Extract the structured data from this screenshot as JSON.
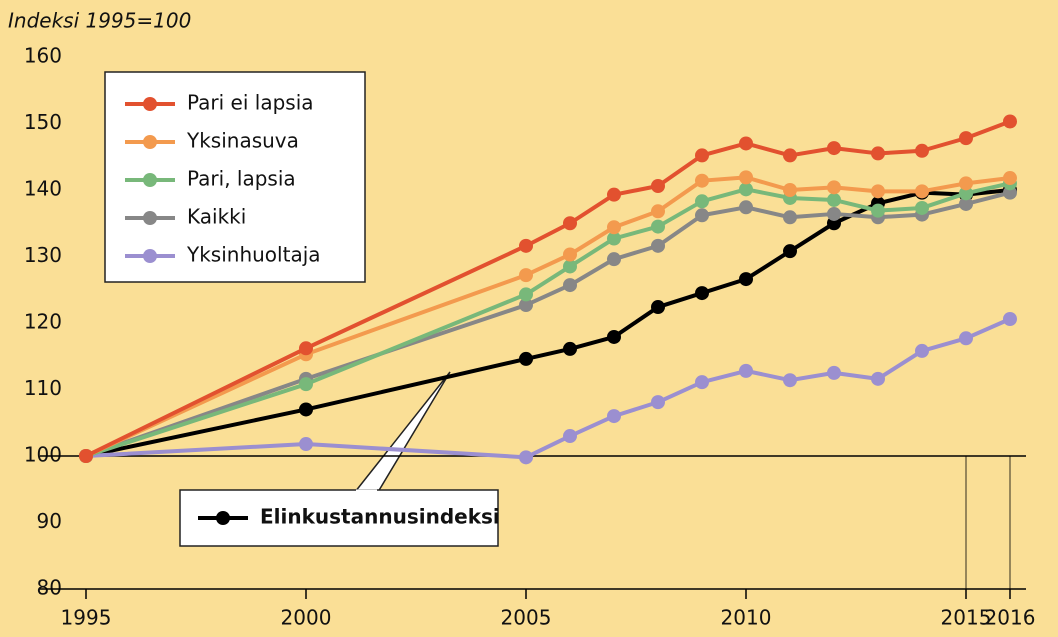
{
  "chart_data": {
    "type": "line",
    "y_label": "Indeksi 1995=100",
    "x": [
      1995,
      2000,
      2005,
      2006,
      2007,
      2008,
      2009,
      2010,
      2011,
      2012,
      2013,
      2014,
      2015,
      2016
    ],
    "series": [
      {
        "name": "Pari ei lapsia",
        "color": "#e2512f",
        "values": [
          100,
          116.2,
          131.6,
          135,
          139.3,
          140.6,
          145.2,
          147,
          145.2,
          146.3,
          145.5,
          145.9,
          147.8,
          150.3
        ]
      },
      {
        "name": "Yksinasuva",
        "color": "#f39a4e",
        "values": [
          100,
          115.3,
          127.2,
          130.3,
          134.4,
          136.8,
          141.4,
          141.9,
          140,
          140.4,
          139.8,
          139.8,
          141,
          141.8
        ]
      },
      {
        "name": "Pari, lapsia",
        "color": "#78b87a",
        "values": [
          100,
          110.8,
          124.3,
          128.5,
          132.7,
          134.5,
          138.3,
          140.1,
          138.8,
          138.5,
          136.9,
          137.3,
          139.5,
          141
        ]
      },
      {
        "name": "Kaikki",
        "color": "#878787",
        "values": [
          100,
          111.6,
          122.7,
          125.7,
          129.6,
          131.6,
          136.2,
          137.4,
          135.9,
          136.4,
          135.9,
          136.3,
          137.9,
          139.6
        ]
      },
      {
        "name": "Yksinhuoltaja",
        "color": "#9b8fd0",
        "values": [
          100,
          101.8,
          99.8,
          103,
          106,
          108.1,
          111.1,
          112.8,
          111.4,
          112.5,
          111.6,
          115.8,
          117.7,
          120.6
        ]
      },
      {
        "name": "Elinkustannusindeksi",
        "color": "#000000",
        "values": [
          100,
          107,
          114.6,
          116.1,
          117.9,
          122.4,
          124.5,
          126.6,
          130.8,
          135,
          138,
          139.6,
          139.3,
          140
        ]
      }
    ],
    "xlim": [
      1995,
      2016
    ],
    "xticks": [
      1995,
      2000,
      2005,
      2010,
      2015,
      2016
    ],
    "ylim": [
      80,
      160
    ],
    "yticks": [
      80,
      90,
      100,
      110,
      120,
      130,
      140,
      150,
      160
    ],
    "legend": "upper left"
  }
}
